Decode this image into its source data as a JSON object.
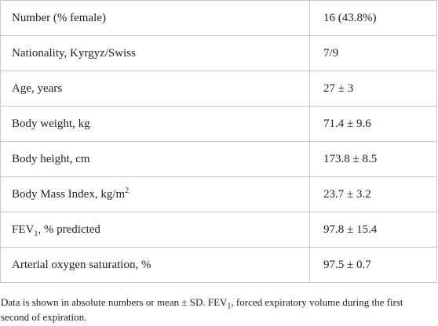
{
  "table": {
    "rows": [
      {
        "label": "Number (% female)",
        "value": "16 (43.8%)"
      },
      {
        "label": "Nationality, Kyrgyz/Swiss",
        "value": "7/9"
      },
      {
        "label": "Age, years",
        "value": "27 ± 3"
      },
      {
        "label": "Body weight, kg",
        "value": "71.4 ± 9.6"
      },
      {
        "label": "Body height, cm",
        "value": "173.8 ± 8.5"
      },
      {
        "label": "Body Mass Index, kg/m",
        "label_sup": "2",
        "value": "23.7 ± 3.2"
      },
      {
        "label": "FEV",
        "label_sub": "1",
        "label_suffix": ", % predicted",
        "value": "97.8 ± 15.4"
      },
      {
        "label": "Arterial oxygen saturation, %",
        "value": "97.5 ± 0.7"
      }
    ]
  },
  "footnote": {
    "text_before": "Data is shown in absolute numbers or mean ± SD. FEV",
    "sub": "1",
    "text_after": ", forced expiratory volume during the first second of expiration."
  }
}
